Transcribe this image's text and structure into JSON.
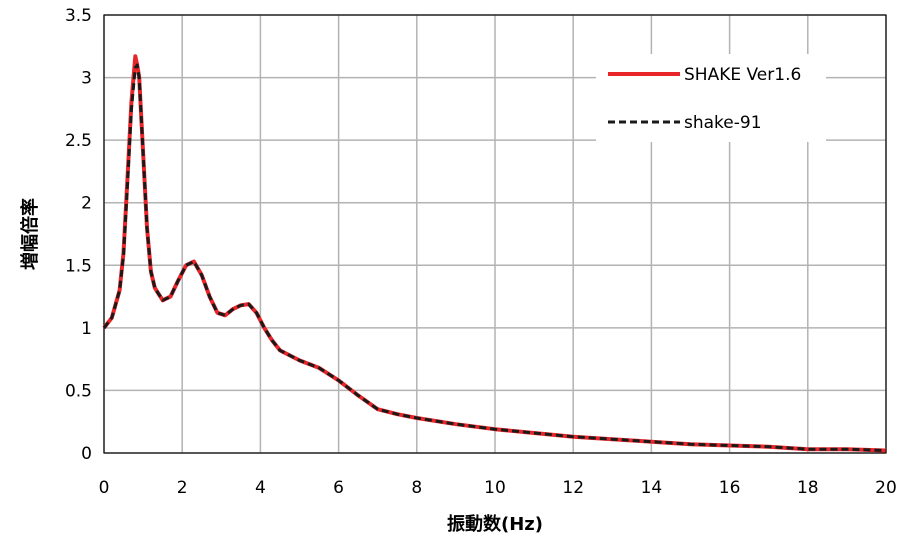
{
  "chart_data": {
    "type": "line",
    "xlabel": "振動数(Hz)",
    "ylabel": "増幅倍率",
    "xlim": [
      0,
      20
    ],
    "ylim": [
      0,
      3.5
    ],
    "xticks": [
      "0",
      "2",
      "4",
      "6",
      "8",
      "10",
      "12",
      "14",
      "16",
      "18",
      "20"
    ],
    "yticks": [
      "0",
      "0.5",
      "1",
      "1.5",
      "2",
      "2.5",
      "3",
      "3.5"
    ],
    "grid": true,
    "legend": "top-right",
    "series": [
      {
        "name": "SHAKE Ver1.6",
        "color": "#e8262a",
        "style": "solid",
        "x": [
          0,
          0.2,
          0.4,
          0.5,
          0.6,
          0.7,
          0.8,
          0.85,
          0.9,
          1.0,
          1.1,
          1.2,
          1.3,
          1.4,
          1.5,
          1.7,
          1.9,
          2.1,
          2.3,
          2.5,
          2.7,
          2.9,
          3.1,
          3.3,
          3.5,
          3.7,
          3.9,
          4.1,
          4.3,
          4.5,
          5.0,
          5.5,
          6.0,
          6.5,
          7.0,
          7.5,
          8.0,
          9.0,
          10.0,
          11.0,
          12.0,
          13.0,
          14.0,
          15.0,
          16.0,
          17.0,
          18.0,
          19.0,
          20.0
        ],
        "y": [
          1.0,
          1.08,
          1.3,
          1.6,
          2.2,
          2.8,
          3.17,
          3.1,
          3.0,
          2.4,
          1.8,
          1.45,
          1.32,
          1.27,
          1.22,
          1.25,
          1.38,
          1.5,
          1.53,
          1.42,
          1.25,
          1.12,
          1.1,
          1.15,
          1.18,
          1.19,
          1.12,
          1.0,
          0.9,
          0.82,
          0.74,
          0.68,
          0.58,
          0.46,
          0.35,
          0.31,
          0.28,
          0.23,
          0.19,
          0.16,
          0.13,
          0.11,
          0.09,
          0.07,
          0.06,
          0.05,
          0.03,
          0.03,
          0.02
        ]
      },
      {
        "name": "shake-91",
        "color": "#1a1a1a",
        "style": "dashed",
        "x": [
          0,
          0.2,
          0.4,
          0.5,
          0.6,
          0.7,
          0.8,
          0.85,
          0.9,
          1.0,
          1.1,
          1.2,
          1.3,
          1.4,
          1.5,
          1.7,
          1.9,
          2.1,
          2.3,
          2.5,
          2.7,
          2.9,
          3.1,
          3.3,
          3.5,
          3.7,
          3.9,
          4.1,
          4.3,
          4.5,
          5.0,
          5.5,
          6.0,
          6.5,
          7.0,
          7.5,
          8.0,
          9.0,
          10.0,
          11.0,
          12.0,
          13.0,
          14.0,
          15.0,
          16.0,
          17.0,
          18.0,
          19.0,
          20.0
        ],
        "y": [
          1.0,
          1.08,
          1.3,
          1.58,
          2.15,
          2.75,
          3.08,
          3.1,
          3.0,
          2.4,
          1.8,
          1.45,
          1.32,
          1.27,
          1.22,
          1.25,
          1.38,
          1.5,
          1.53,
          1.42,
          1.25,
          1.12,
          1.1,
          1.15,
          1.18,
          1.19,
          1.12,
          1.0,
          0.9,
          0.82,
          0.74,
          0.68,
          0.58,
          0.46,
          0.35,
          0.31,
          0.28,
          0.23,
          0.19,
          0.16,
          0.13,
          0.11,
          0.09,
          0.07,
          0.06,
          0.05,
          0.03,
          0.03,
          0.02
        ]
      }
    ]
  }
}
